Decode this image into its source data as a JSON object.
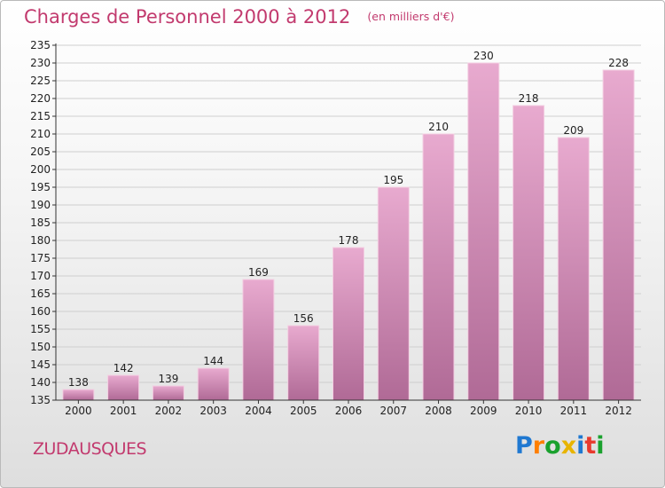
{
  "header": {
    "title": "Charges de Personnel 2000 à 2012",
    "unit": "(en milliers d'€)"
  },
  "commune": "ZUDAUSQUES",
  "brand": {
    "name": "Proxiti",
    "letters": [
      "P",
      "r",
      "o",
      "x",
      "i",
      "t",
      "i"
    ],
    "letter_colors": [
      "#1f78d1",
      "#ff7f00",
      "#1aa12e",
      "#e8b400",
      "#1f78d1",
      "#e83a2e",
      "#1aa12e"
    ]
  },
  "colors": {
    "bar_top": "#e8aacf",
    "bar_bottom": "#b06a96",
    "axis": "#333333",
    "grid": "#cfcfcf"
  },
  "chart_data": {
    "type": "bar",
    "title": "Charges de Personnel 2000 à 2012",
    "subtitle": "(en milliers d'€)",
    "categories": [
      "2000",
      "2001",
      "2002",
      "2003",
      "2004",
      "2005",
      "2006",
      "2007",
      "2008",
      "2009",
      "2010",
      "2011",
      "2012"
    ],
    "values": [
      138,
      142,
      139,
      144,
      169,
      156,
      178,
      195,
      210,
      230,
      218,
      209,
      228
    ],
    "ylim": [
      135,
      235
    ],
    "ytick_step": 5,
    "xlabel": "",
    "ylabel": "",
    "grid": true,
    "data_labels": true
  }
}
